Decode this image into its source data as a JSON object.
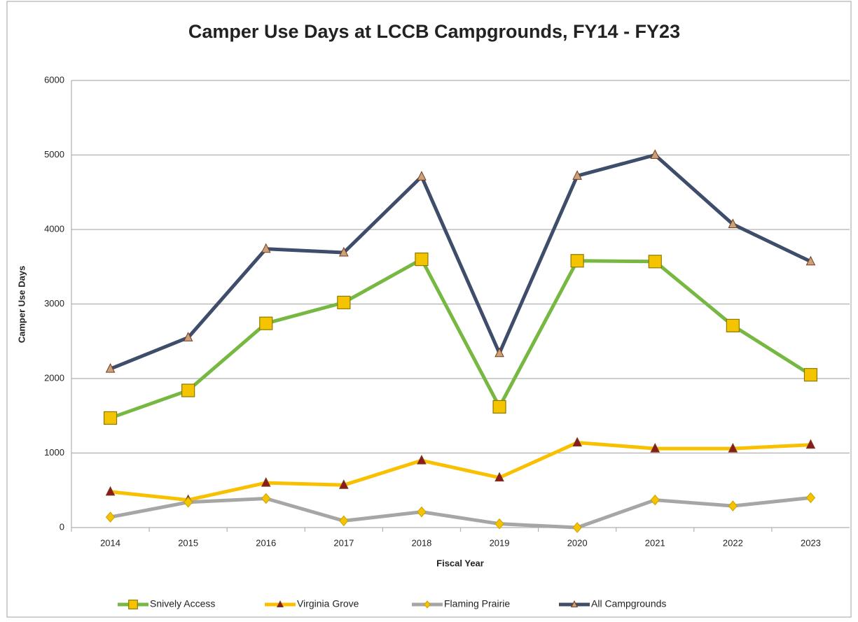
{
  "chart_data": {
    "type": "line",
    "title": "Camper Use Days at LCCB Campgrounds, FY14 - FY23",
    "xlabel": "Fiscal Year",
    "ylabel": "Camper Use Days",
    "categories": [
      "2014",
      "2015",
      "2016",
      "2017",
      "2018",
      "2019",
      "2020",
      "2021",
      "2022",
      "2023"
    ],
    "series": [
      {
        "name": "Snively Access",
        "color": "#77b843",
        "marker": "square",
        "marker_color": "#f5c400",
        "values": [
          1470,
          1840,
          2740,
          3020,
          3600,
          1620,
          3580,
          3570,
          2710,
          2050
        ]
      },
      {
        "name": "Virginia Grove",
        "color": "#f9c000",
        "marker": "triangle",
        "marker_color": "#8b1a1a",
        "values": [
          480,
          370,
          600,
          570,
          900,
          670,
          1140,
          1060,
          1060,
          1110
        ]
      },
      {
        "name": "Flaming Prairie",
        "color": "#a6a6a6",
        "marker": "diamond",
        "marker_color": "#f5c400",
        "values": [
          140,
          340,
          390,
          90,
          210,
          50,
          0,
          370,
          290,
          400
        ]
      },
      {
        "name": "All Campgrounds",
        "color": "#3e4d6a",
        "marker": "triangle",
        "marker_color": "#c8a27a",
        "values": [
          2130,
          2550,
          3740,
          3690,
          4710,
          2340,
          4720,
          5000,
          4070,
          3570
        ]
      }
    ],
    "ylim": [
      0,
      6000
    ],
    "yticks": [
      0,
      1000,
      2000,
      3000,
      4000,
      5000,
      6000
    ],
    "grid": true,
    "legend": "bottom"
  }
}
